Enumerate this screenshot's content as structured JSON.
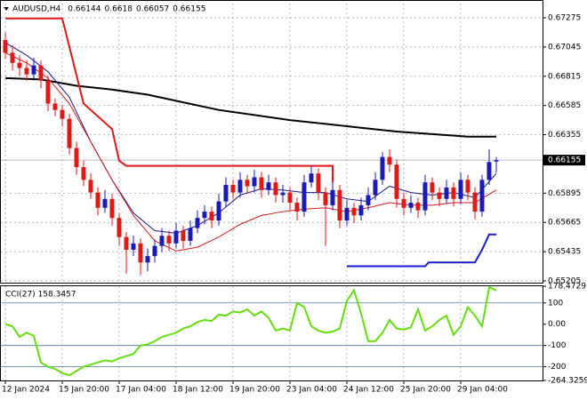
{
  "chart_data": [
    {
      "type": "candlestick",
      "header": {
        "symbol": "AUDUSD,H4",
        "open": 0.66144,
        "high": 0.6618,
        "low": 0.66057,
        "close": 0.66155
      },
      "current_price": 0.66155,
      "categories": [
        "12 Jan 2024",
        null,
        null,
        null,
        null,
        null,
        null,
        null,
        "15 Jan 20:00",
        null,
        null,
        null,
        null,
        null,
        null,
        null,
        "17 Jan 04:00",
        null,
        null,
        null,
        null,
        null,
        null,
        null,
        "18 Jan 12:00",
        null,
        null,
        null,
        null,
        null,
        null,
        null,
        "19 Jan 20:00",
        null,
        null,
        null,
        null,
        null,
        null,
        null,
        "23 Jan 04:00",
        null,
        null,
        null,
        null,
        null,
        null,
        null,
        "24 Jan 12:00",
        null,
        null,
        null,
        null,
        null,
        null,
        null,
        "25 Jan 20:00",
        null,
        null,
        null,
        null,
        null,
        null,
        null,
        "29 Jan 04:00",
        null,
        null,
        null,
        null,
        null
      ],
      "open": [
        0.671,
        0.67,
        0.6692,
        0.6688,
        0.6683,
        0.669,
        0.6678,
        0.666,
        0.6655,
        0.6648,
        0.6625,
        0.661,
        0.66,
        0.659,
        0.6578,
        0.6585,
        0.657,
        0.6555,
        0.6545,
        0.655,
        0.6535,
        0.654,
        0.6548,
        0.6556,
        0.655,
        0.656,
        0.6552,
        0.6562,
        0.657,
        0.6575,
        0.6568,
        0.6583,
        0.6596,
        0.659,
        0.66,
        0.6595,
        0.6602,
        0.6592,
        0.6598,
        0.6588,
        0.659,
        0.6582,
        0.6575,
        0.6598,
        0.6605,
        0.659,
        0.658,
        0.6592,
        0.6568,
        0.6578,
        0.6572,
        0.658,
        0.6588,
        0.66,
        0.6618,
        0.6612,
        0.6585,
        0.6578,
        0.6582,
        0.6576,
        0.6598,
        0.659,
        0.6585,
        0.6594,
        0.6585,
        0.66,
        0.659,
        0.6575,
        0.66,
        0.66144
      ],
      "high": [
        0.6716,
        0.6706,
        0.6698,
        0.6694,
        0.6696,
        0.6694,
        0.6682,
        0.6664,
        0.6659,
        0.6652,
        0.663,
        0.6615,
        0.6605,
        0.6594,
        0.6592,
        0.6589,
        0.6574,
        0.6559,
        0.6556,
        0.6554,
        0.6546,
        0.6553,
        0.6562,
        0.656,
        0.6566,
        0.6564,
        0.6568,
        0.6576,
        0.658,
        0.6579,
        0.6589,
        0.6602,
        0.66,
        0.6606,
        0.6604,
        0.6608,
        0.6606,
        0.6604,
        0.6602,
        0.6596,
        0.6594,
        0.6586,
        0.6604,
        0.6611,
        0.6609,
        0.6594,
        0.6598,
        0.6596,
        0.6584,
        0.6582,
        0.6586,
        0.6594,
        0.6606,
        0.6622,
        0.6624,
        0.6616,
        0.659,
        0.6588,
        0.6586,
        0.6604,
        0.6602,
        0.6594,
        0.66,
        0.6598,
        0.6606,
        0.6604,
        0.6594,
        0.6604,
        0.6624,
        0.6618
      ],
      "low": [
        0.6695,
        0.6686,
        0.6682,
        0.6678,
        0.6678,
        0.6672,
        0.6654,
        0.665,
        0.6642,
        0.662,
        0.6604,
        0.6595,
        0.6585,
        0.6572,
        0.6574,
        0.6564,
        0.6548,
        0.6526,
        0.654,
        0.6525,
        0.6528,
        0.6535,
        0.6543,
        0.6544,
        0.6546,
        0.6546,
        0.6548,
        0.6558,
        0.6565,
        0.6562,
        0.6564,
        0.6579,
        0.6585,
        0.6586,
        0.6589,
        0.659,
        0.6586,
        0.6588,
        0.6582,
        0.6582,
        0.6576,
        0.6568,
        0.6571,
        0.6594,
        0.6584,
        0.6548,
        0.6576,
        0.6562,
        0.6564,
        0.6566,
        0.6568,
        0.6576,
        0.6584,
        0.6596,
        0.6606,
        0.6578,
        0.6572,
        0.6574,
        0.657,
        0.6572,
        0.6584,
        0.6579,
        0.6581,
        0.6579,
        0.6581,
        0.6584,
        0.6569,
        0.6571,
        0.6596,
        0.66057
      ],
      "close": [
        0.67,
        0.6692,
        0.6688,
        0.6683,
        0.669,
        0.6678,
        0.666,
        0.6655,
        0.6648,
        0.6625,
        0.661,
        0.66,
        0.659,
        0.6578,
        0.6585,
        0.657,
        0.6555,
        0.6545,
        0.655,
        0.6535,
        0.654,
        0.6548,
        0.6556,
        0.655,
        0.656,
        0.6552,
        0.6562,
        0.657,
        0.6575,
        0.6568,
        0.6583,
        0.6596,
        0.659,
        0.66,
        0.6595,
        0.6602,
        0.6592,
        0.6598,
        0.6588,
        0.659,
        0.6582,
        0.6575,
        0.6598,
        0.6605,
        0.659,
        0.658,
        0.6592,
        0.6568,
        0.6578,
        0.6572,
        0.658,
        0.6588,
        0.66,
        0.6618,
        0.6612,
        0.6585,
        0.6578,
        0.6582,
        0.6576,
        0.6598,
        0.659,
        0.6585,
        0.6594,
        0.6585,
        0.66,
        0.659,
        0.6575,
        0.66,
        0.6614,
        0.66155
      ],
      "up_color": "#1a1ab8",
      "down_color": "#e01818",
      "overlays": [
        {
          "color": "#000000",
          "width": 2,
          "x": [
            0,
            5,
            10,
            15,
            20,
            25,
            30,
            35,
            40,
            45,
            50,
            55,
            60,
            65,
            69
          ],
          "values": [
            0.668,
            0.6679,
            0.6674,
            0.6671,
            0.6667,
            0.6661,
            0.6655,
            0.6651,
            0.6647,
            0.6644,
            0.6641,
            0.6638,
            0.6636,
            0.6634,
            0.6634
          ]
        },
        {
          "color": "#1a1a8c",
          "width": 1,
          "x": [
            0,
            3,
            6,
            9,
            12,
            15,
            18,
            21,
            24,
            27,
            30,
            33,
            36,
            39,
            42,
            45,
            48,
            51,
            54,
            57,
            60,
            63,
            66,
            69
          ],
          "values": [
            0.6708,
            0.6698,
            0.6685,
            0.6665,
            0.663,
            0.66,
            0.6574,
            0.656,
            0.6558,
            0.6564,
            0.6574,
            0.6588,
            0.6593,
            0.6592,
            0.659,
            0.659,
            0.6585,
            0.6583,
            0.6595,
            0.659,
            0.6588,
            0.659,
            0.6586,
            0.6605
          ]
        },
        {
          "color": "#d41c1c",
          "width": 1,
          "x": [
            0,
            3,
            6,
            9,
            12,
            15,
            18,
            21,
            24,
            27,
            30,
            33,
            36,
            39,
            42,
            45,
            48,
            51,
            54,
            57,
            60,
            63,
            66,
            69
          ],
          "values": [
            0.67,
            0.6692,
            0.668,
            0.666,
            0.663,
            0.66,
            0.6572,
            0.6552,
            0.6544,
            0.6547,
            0.6555,
            0.6565,
            0.6572,
            0.6575,
            0.6577,
            0.6578,
            0.6575,
            0.6578,
            0.6582,
            0.658,
            0.658,
            0.6582,
            0.6582,
            0.6592
          ]
        },
        {
          "color": "#e01818",
          "width": 2,
          "x": [
            0,
            8,
            11,
            15,
            16,
            17,
            46,
            46
          ],
          "values": [
            0.6727,
            0.6727,
            0.666,
            0.664,
            0.6615,
            0.6611,
            0.6611,
            0.6598
          ]
        },
        {
          "color": "#1a1ad0",
          "width": 2,
          "x": [
            48,
            59,
            59.5,
            66,
            67,
            68,
            69
          ],
          "values": [
            0.6532,
            0.6532,
            0.6535,
            0.6535,
            0.6545,
            0.6557,
            0.6557
          ]
        }
      ],
      "ylim": [
        0.65191,
        0.67387
      ],
      "yticks": [
        0.67275,
        0.67045,
        0.66815,
        0.66585,
        0.66355,
        0.65895,
        0.65665,
        0.65435,
        0.65205
      ],
      "grid": true
    },
    {
      "type": "line",
      "title": "CCI(27) 158.3457",
      "color": "#66dd11",
      "values": [
        0,
        -10,
        -60,
        -40,
        -55,
        -180,
        -200,
        -210,
        -230,
        -240,
        -220,
        -200,
        -190,
        -180,
        -170,
        -175,
        -160,
        -150,
        -140,
        -100,
        -95,
        -80,
        -60,
        -50,
        -40,
        -20,
        -10,
        10,
        20,
        15,
        45,
        40,
        60,
        55,
        70,
        40,
        60,
        30,
        -30,
        -20,
        -30,
        100,
        80,
        -10,
        -30,
        -40,
        -35,
        -20,
        110,
        160,
        50,
        -80,
        -80,
        -40,
        20,
        -20,
        -25,
        -15,
        70,
        -30,
        -10,
        20,
        40,
        -50,
        -10,
        80,
        40,
        -10,
        175,
        158.3457
      ],
      "levels": [
        100,
        -100,
        -200
      ],
      "ylim": [
        -264.3259,
        178.4729
      ],
      "yticks": [
        178.4729,
        100,
        {
          "value": 0,
          "label": "0.00"
        },
        -100,
        -200,
        -264.3259
      ]
    }
  ]
}
